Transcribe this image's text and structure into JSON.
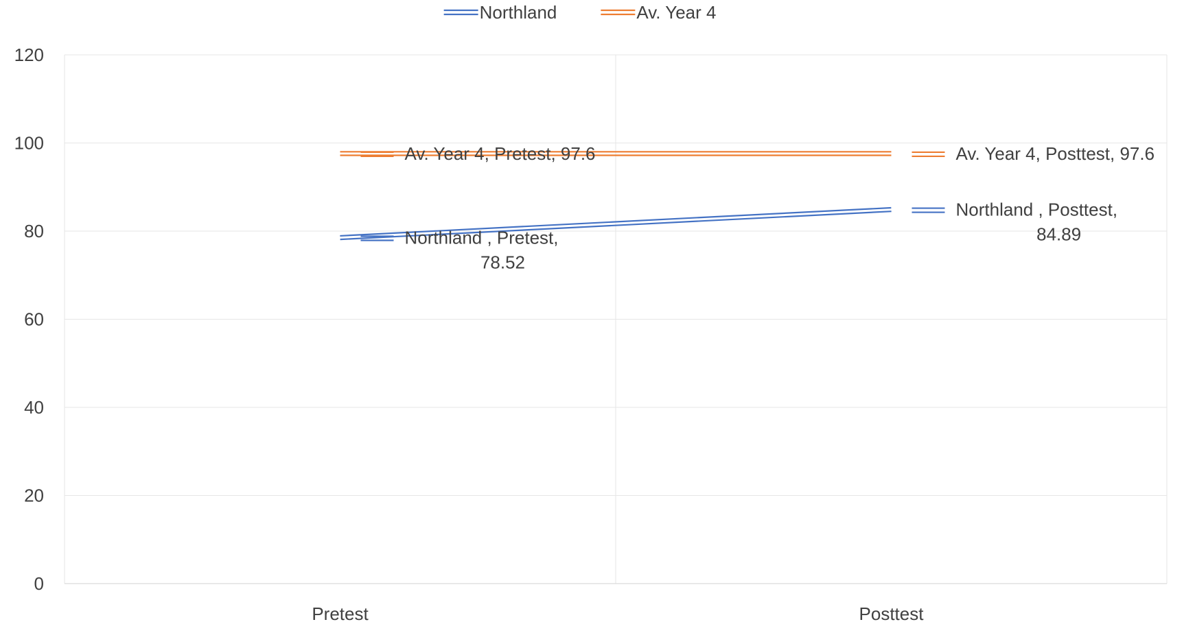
{
  "chart_data": {
    "type": "line",
    "title": "",
    "xlabel": "",
    "ylabel": "",
    "categories": [
      "Pretest",
      "Posttest"
    ],
    "ylim": [
      0,
      120
    ],
    "yticks": [
      0,
      20,
      40,
      60,
      80,
      100,
      120
    ],
    "grid": true,
    "legend_position": "top-center",
    "series": [
      {
        "name": "Northland",
        "values": [
          78.52,
          84.89
        ],
        "color": "#4472C4",
        "labels": [
          "Northland , Pretest, 78.52",
          "Northland , Posttest, 84.89"
        ],
        "label_lines": [
          [
            "Northland , Pretest,",
            "78.52"
          ],
          [
            "Northland , Posttest,",
            "84.89"
          ]
        ]
      },
      {
        "name": "Av. Year 4",
        "values": [
          97.6,
          97.6
        ],
        "color": "#ED7D31",
        "labels": [
          "Av. Year 4, Pretest, 97.6",
          "Av. Year 4, Posttest, 97.6"
        ],
        "label_lines": [
          [
            "Av. Year 4, Pretest, 97.6"
          ],
          [
            "Av. Year 4, Posttest, 97.6"
          ]
        ]
      }
    ]
  }
}
